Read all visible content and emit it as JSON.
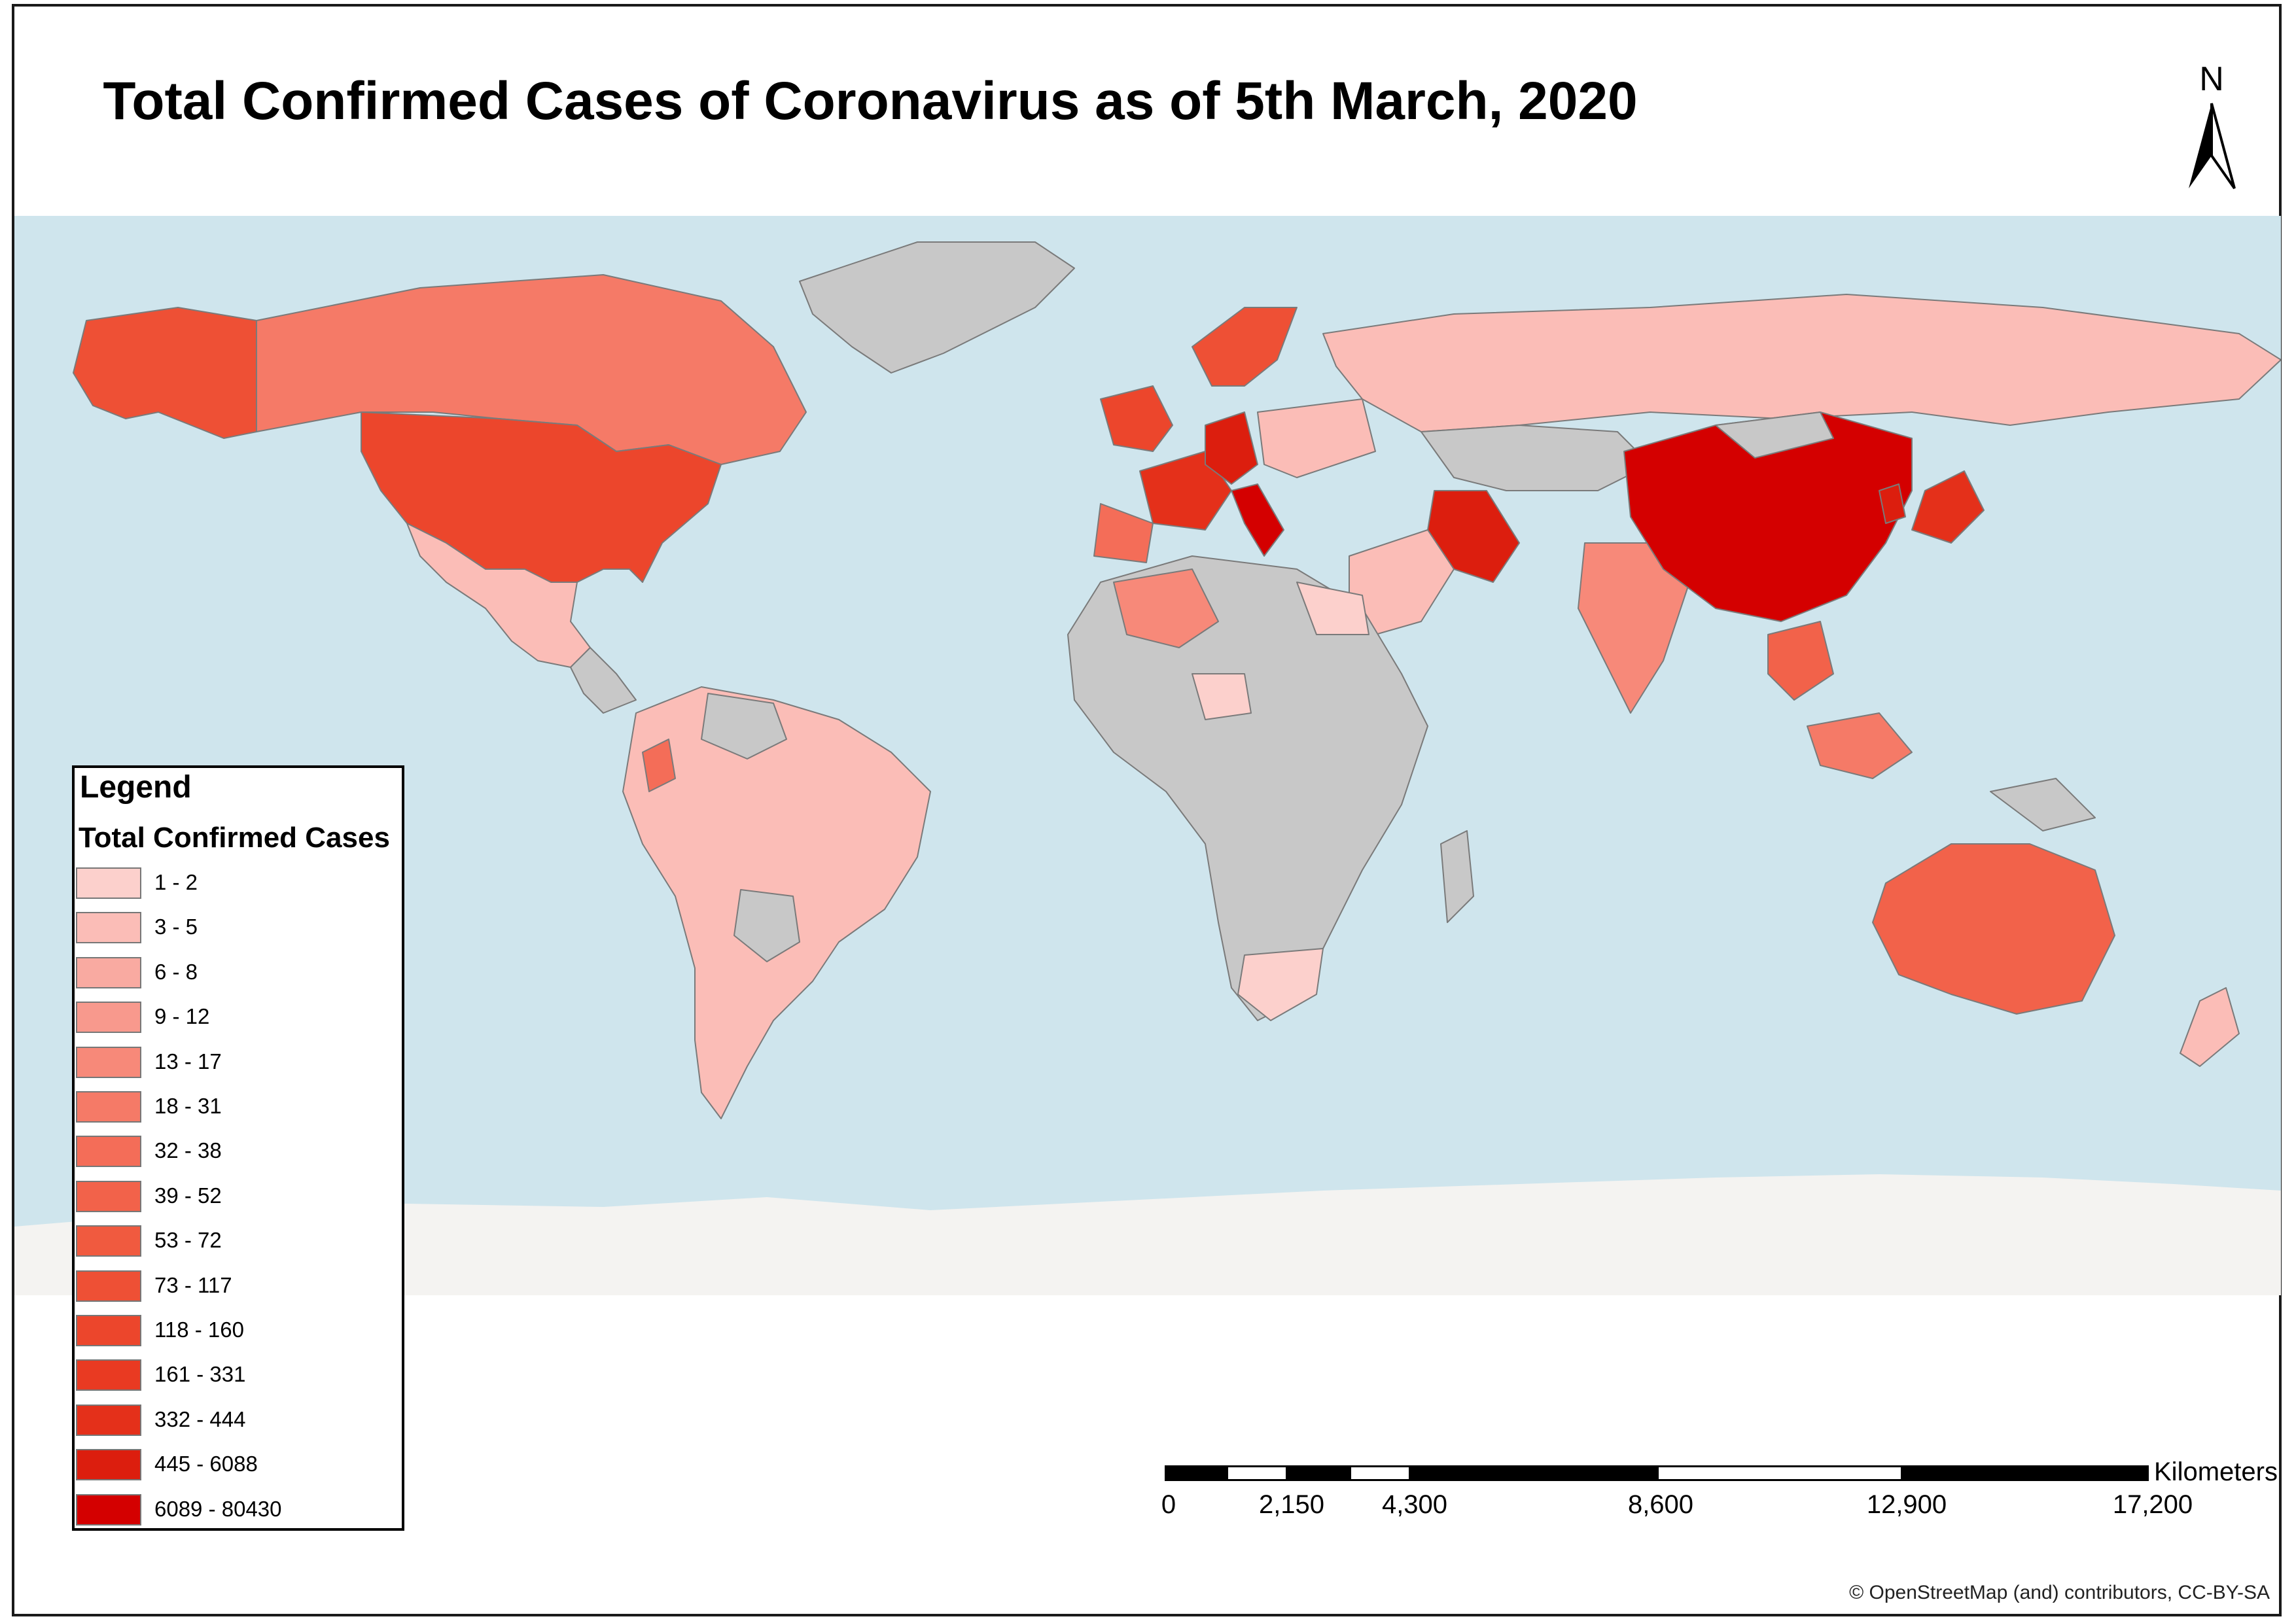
{
  "title": "Total Confirmed Cases of Coronavirus as of 5th March, 2020",
  "north_arrow": {
    "label": "N",
    "icon": "north-arrow-icon"
  },
  "colors": {
    "ocean": "#cfe5ed",
    "antarctica": "#f4f3f1",
    "no_data": "#c8c8c8",
    "border": "#7a7a7a"
  },
  "legend": {
    "title": "Legend",
    "subtitle": "Total Confirmed Cases",
    "classes": [
      {
        "label": "1 - 2",
        "color": "#fcd0cc"
      },
      {
        "label": "3 - 5",
        "color": "#fbbdb7"
      },
      {
        "label": "6 - 8",
        "color": "#f9aaa1"
      },
      {
        "label": "9 - 12",
        "color": "#f8998d"
      },
      {
        "label": "13 - 17",
        "color": "#f78979"
      },
      {
        "label": "18 - 31",
        "color": "#f57a67"
      },
      {
        "label": "32 - 38",
        "color": "#f46d58"
      },
      {
        "label": "39 - 52",
        "color": "#f2624a"
      },
      {
        "label": "53 - 72",
        "color": "#f05a3f"
      },
      {
        "label": "73 - 117",
        "color": "#ee5035"
      },
      {
        "label": "118 - 160",
        "color": "#ec462c"
      },
      {
        "label": "161 - 331",
        "color": "#e93a22"
      },
      {
        "label": "332 - 444",
        "color": "#e4301a"
      },
      {
        "label": "445 - 6088",
        "color": "#dc1e0e"
      },
      {
        "label": "6089 - 80430",
        "color": "#d40000"
      }
    ]
  },
  "scale_bar": {
    "unit": "Kilometers",
    "ticks": [
      "0",
      "2,150",
      "4,300",
      "8,600",
      "12,900",
      "17,200"
    ]
  },
  "attribution": "© OpenStreetMap (and) contributors, CC-BY-SA"
}
